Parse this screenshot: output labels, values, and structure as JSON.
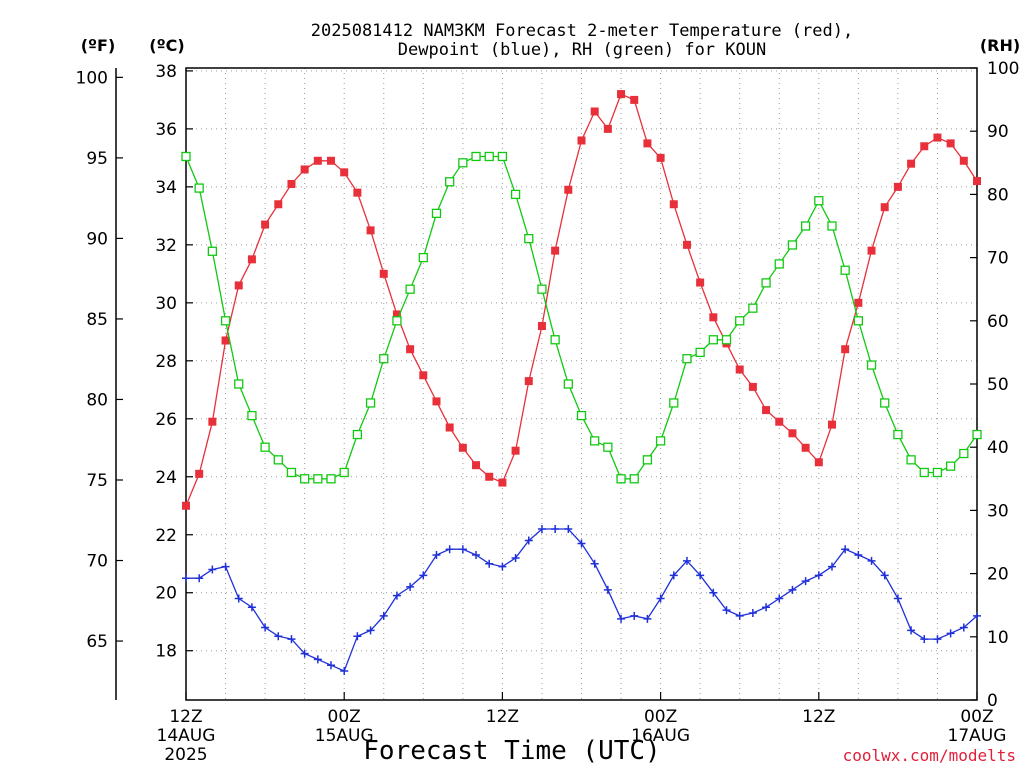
{
  "chart_data": {
    "type": "line",
    "title_line1": "2025081412 NAM3KM Forecast 2-meter Temperature (red),",
    "title_line2": "Dewpoint (blue), RH (green) for KOUN",
    "xlabel": "Forecast Time (UTC)",
    "credit": "coolwx.com/modelts",
    "units": {
      "f": "(ºF)",
      "c": "(ºC)",
      "rh": "(RH)"
    },
    "x_hours_range": [
      0,
      60
    ],
    "x_ticks": [
      {
        "hour": 0,
        "l1": "12Z",
        "l2": "14AUG",
        "l3": "2025"
      },
      {
        "hour": 12,
        "l1": "00Z",
        "l2": "15AUG",
        "l3": ""
      },
      {
        "hour": 24,
        "l1": "12Z",
        "l2": "",
        "l3": ""
      },
      {
        "hour": 36,
        "l1": "00Z",
        "l2": "16AUG",
        "l3": ""
      },
      {
        "hour": 48,
        "l1": "12Z",
        "l2": "",
        "l3": ""
      },
      {
        "hour": 60,
        "l1": "00Z",
        "l2": "17AUG",
        "l3": ""
      }
    ],
    "y_c_range": [
      16.3,
      38.1
    ],
    "y_c_ticks": [
      "18",
      "20",
      "22",
      "24",
      "26",
      "28",
      "30",
      "32",
      "34",
      "36",
      "38"
    ],
    "y_f_ticks": [
      "65",
      "70",
      "75",
      "80",
      "85",
      "90",
      "95",
      "100"
    ],
    "y_rh_range": [
      0,
      100
    ],
    "y_rh_ticks": [
      "0",
      "10",
      "20",
      "30",
      "40",
      "50",
      "60",
      "70",
      "80",
      "90",
      "100"
    ],
    "grid": true,
    "series": [
      {
        "name": "Temperature",
        "color": "#e8303a",
        "axis": "c",
        "marker": "filled-square",
        "values": [
          23.0,
          24.1,
          25.9,
          28.7,
          30.6,
          31.5,
          32.7,
          33.4,
          34.1,
          34.6,
          34.9,
          34.9,
          34.5,
          33.8,
          32.5,
          31.0,
          29.6,
          28.4,
          27.5,
          26.6,
          25.7,
          25.0,
          24.4,
          24.0,
          23.8,
          24.9,
          27.3,
          29.2,
          31.8,
          33.9,
          35.6,
          36.6,
          36.0,
          37.2,
          37.0,
          35.5,
          35.0,
          33.4,
          32.0,
          30.7,
          29.5,
          28.6,
          27.7,
          27.1,
          26.3,
          25.9,
          25.5,
          25.0,
          24.5,
          25.8,
          28.4,
          30.0,
          31.8,
          33.3,
          34.0,
          34.8,
          35.4,
          35.7,
          35.5,
          34.9,
          34.2
        ],
        "start_hour": 0
      },
      {
        "name": "Dewpoint",
        "color": "#2030d8",
        "axis": "c",
        "marker": "plus",
        "values": [
          20.5,
          20.5,
          20.8,
          20.9,
          19.8,
          19.5,
          18.8,
          18.5,
          18.4,
          17.9,
          17.7,
          17.5,
          17.3,
          18.5,
          18.7,
          19.2,
          19.9,
          20.2,
          20.6,
          21.3,
          21.5,
          21.5,
          21.3,
          21.0,
          20.9,
          21.2,
          21.8,
          22.2,
          22.2,
          22.2,
          21.7,
          21.0,
          20.1,
          19.1,
          19.2,
          19.1,
          19.8,
          20.6,
          21.1,
          20.6,
          20.0,
          19.4,
          19.2,
          19.3,
          19.5,
          19.8,
          20.1,
          20.4,
          20.6,
          20.9,
          21.5,
          21.3,
          21.1,
          20.6,
          19.8,
          18.7,
          18.4,
          18.4,
          18.6,
          18.8,
          19.2
        ],
        "start_hour": 0
      },
      {
        "name": "RH",
        "color": "#12c912",
        "axis": "rh",
        "marker": "open-square",
        "values": [
          86,
          81,
          71,
          60,
          50,
          45,
          40,
          38,
          36,
          35,
          35,
          35,
          36,
          42,
          47,
          54,
          60,
          65,
          70,
          77,
          82,
          85,
          86,
          86,
          86,
          80,
          73,
          65,
          57,
          50,
          45,
          41,
          40,
          35,
          35,
          38,
          41,
          47,
          54,
          55,
          57,
          57,
          60,
          62,
          66,
          69,
          72,
          75,
          79,
          75,
          68,
          60,
          53,
          47,
          42,
          38,
          36,
          36,
          37,
          39,
          42
        ],
        "start_hour": 0
      }
    ]
  }
}
